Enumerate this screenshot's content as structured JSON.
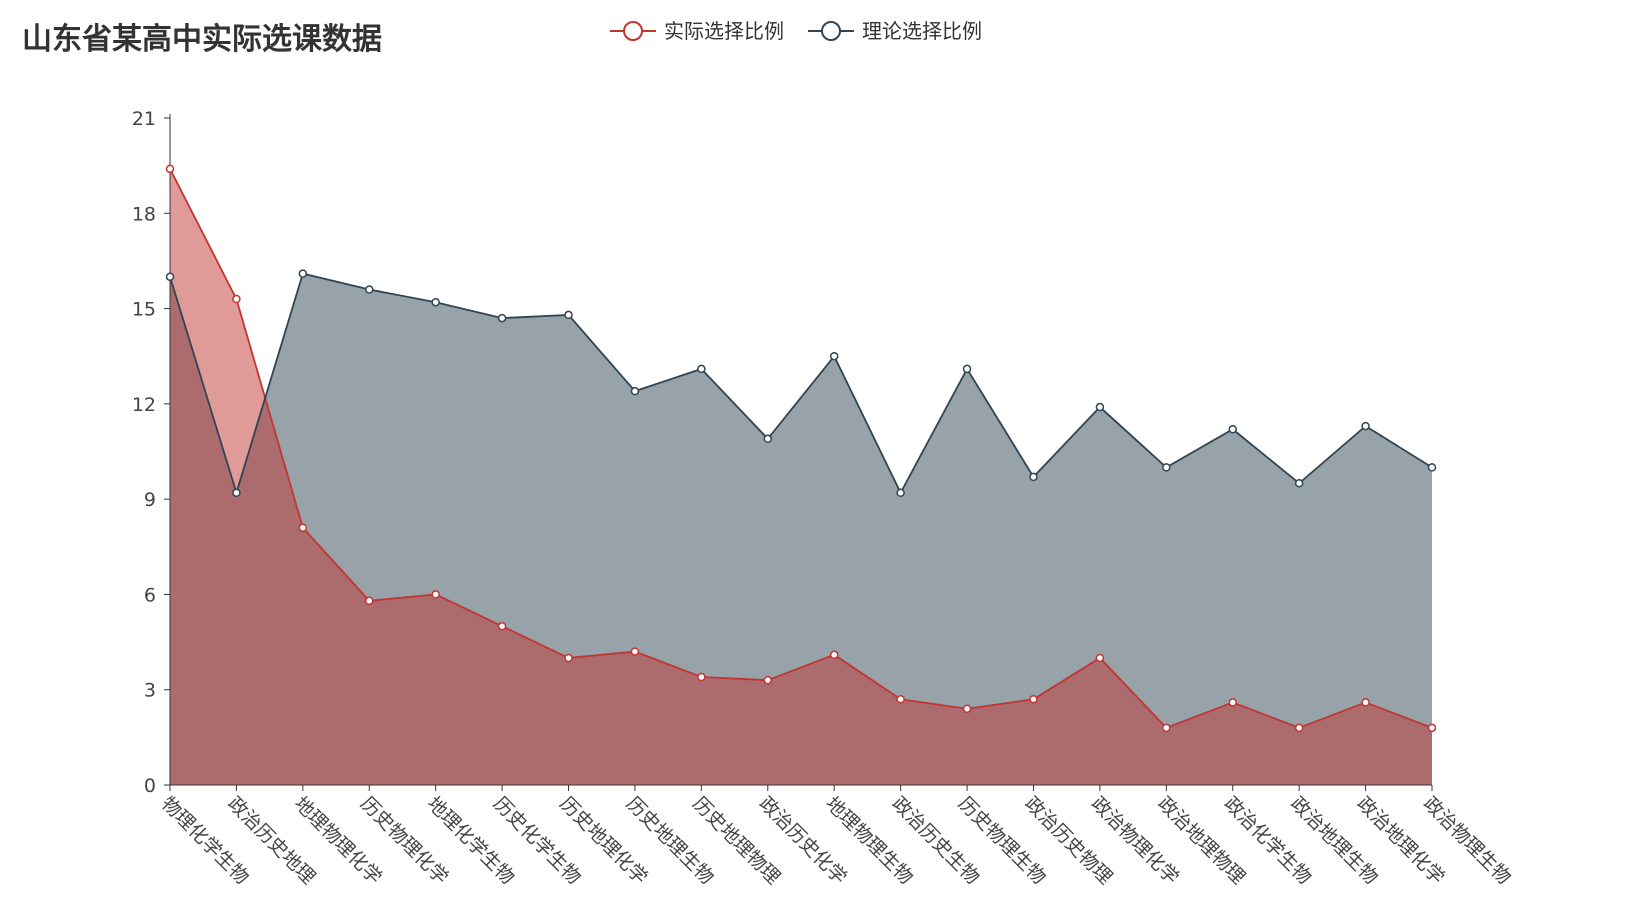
{
  "chart_data": {
    "type": "area",
    "title": "山东省某高中实际选课数据",
    "categories": [
      "物理化学生物",
      "政治历史地理",
      "地理物理化学",
      "历史物理化学",
      "地理化学生物",
      "历史化学生物",
      "历史地理化学",
      "历史地理生物",
      "历史地理物理",
      "政治历史化学",
      "地理物理生物",
      "政治历史生物",
      "历史物理生物",
      "政治历史物理",
      "政治物理化学",
      "政治地理物理",
      "政治化学生物",
      "政治地理生物",
      "政治地理化学",
      "政治物理生物"
    ],
    "series": [
      {
        "name": "实际选择比例",
        "color": "#c23531",
        "values": [
          19.4,
          15.3,
          8.1,
          5.8,
          6.0,
          5.0,
          4.0,
          4.2,
          3.4,
          3.3,
          4.1,
          2.7,
          2.4,
          2.7,
          4.0,
          1.8,
          2.6,
          1.8,
          2.6,
          1.8
        ]
      },
      {
        "name": "理论选择比例",
        "color": "#2f4554",
        "values": [
          16.0,
          9.2,
          16.1,
          15.6,
          15.2,
          14.7,
          14.8,
          12.4,
          13.1,
          10.9,
          13.5,
          9.2,
          13.1,
          9.7,
          11.9,
          10.0,
          11.2,
          9.5,
          11.3,
          10.0
        ]
      }
    ],
    "ylim": [
      0,
      21
    ],
    "yticks": [
      0,
      3,
      6,
      9,
      12,
      15,
      18,
      21
    ],
    "legend_position": "top-center",
    "grid": false
  }
}
